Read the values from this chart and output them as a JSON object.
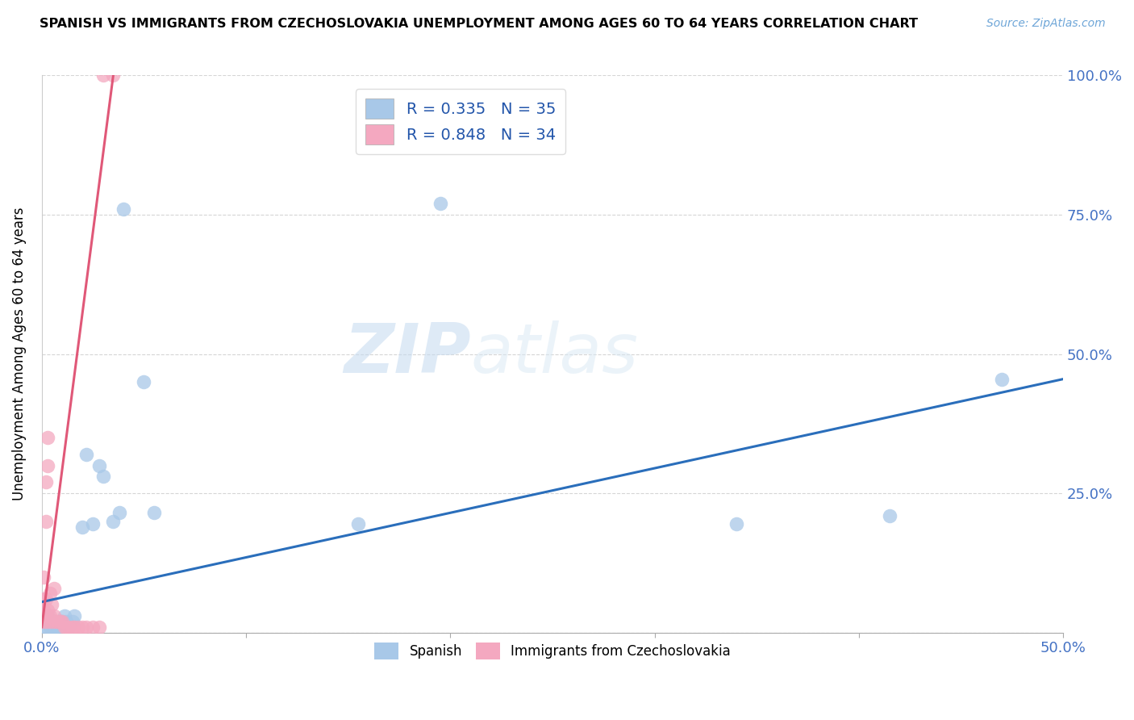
{
  "title": "SPANISH VS IMMIGRANTS FROM CZECHOSLOVAKIA UNEMPLOYMENT AMONG AGES 60 TO 64 YEARS CORRELATION CHART",
  "source": "Source: ZipAtlas.com",
  "ylabel": "Unemployment Among Ages 60 to 64 years",
  "xlim": [
    0.0,
    0.5
  ],
  "ylim": [
    0.0,
    1.0
  ],
  "xticks": [
    0.0,
    0.1,
    0.2,
    0.3,
    0.4,
    0.5
  ],
  "xtick_labels_show": {
    "0.0": "0.0%",
    "0.5": "50.0%"
  },
  "yticks": [
    0.0,
    0.25,
    0.5,
    0.75,
    1.0
  ],
  "ytick_labels": [
    "",
    "25.0%",
    "50.0%",
    "75.0%",
    "100.0%"
  ],
  "blue_r": 0.335,
  "blue_n": 35,
  "pink_r": 0.848,
  "pink_n": 34,
  "blue_color": "#A8C8E8",
  "pink_color": "#F4A8C0",
  "blue_line_color": "#2A6EBB",
  "pink_line_color": "#E05878",
  "watermark_zip": "ZIP",
  "watermark_atlas": "atlas",
  "legend1": "Spanish",
  "legend2": "Immigrants from Czechoslovakia",
  "blue_x": [
    0.001,
    0.002,
    0.002,
    0.003,
    0.003,
    0.004,
    0.004,
    0.005,
    0.005,
    0.006,
    0.006,
    0.007,
    0.008,
    0.009,
    0.01,
    0.011,
    0.012,
    0.013,
    0.015,
    0.016,
    0.02,
    0.022,
    0.025,
    0.028,
    0.03,
    0.035,
    0.038,
    0.04,
    0.05,
    0.055,
    0.155,
    0.195,
    0.34,
    0.415,
    0.47
  ],
  "blue_y": [
    0.01,
    0.02,
    0.01,
    0.03,
    0.02,
    0.015,
    0.01,
    0.02,
    0.01,
    0.01,
    0.02,
    0.01,
    0.01,
    0.02,
    0.02,
    0.03,
    0.02,
    0.01,
    0.02,
    0.03,
    0.19,
    0.32,
    0.195,
    0.3,
    0.28,
    0.2,
    0.215,
    0.76,
    0.45,
    0.215,
    0.195,
    0.77,
    0.195,
    0.21,
    0.455
  ],
  "pink_x": [
    0.001,
    0.001,
    0.001,
    0.001,
    0.002,
    0.002,
    0.002,
    0.002,
    0.003,
    0.003,
    0.003,
    0.003,
    0.004,
    0.004,
    0.005,
    0.005,
    0.006,
    0.006,
    0.007,
    0.008,
    0.009,
    0.01,
    0.011,
    0.012,
    0.013,
    0.015,
    0.016,
    0.018,
    0.02,
    0.022,
    0.025,
    0.028,
    0.03,
    0.035
  ],
  "pink_y": [
    0.02,
    0.04,
    0.06,
    0.1,
    0.03,
    0.06,
    0.2,
    0.27,
    0.02,
    0.04,
    0.3,
    0.35,
    0.03,
    0.07,
    0.02,
    0.05,
    0.03,
    0.08,
    0.02,
    0.02,
    0.02,
    0.02,
    0.01,
    0.01,
    0.01,
    0.01,
    0.01,
    0.01,
    0.01,
    0.01,
    0.01,
    0.01,
    1.0,
    1.0
  ],
  "blue_line_x": [
    0.0,
    0.5
  ],
  "blue_line_y": [
    0.055,
    0.455
  ],
  "pink_line_x": [
    0.0,
    0.035
  ],
  "pink_line_y": [
    0.01,
    1.0
  ]
}
